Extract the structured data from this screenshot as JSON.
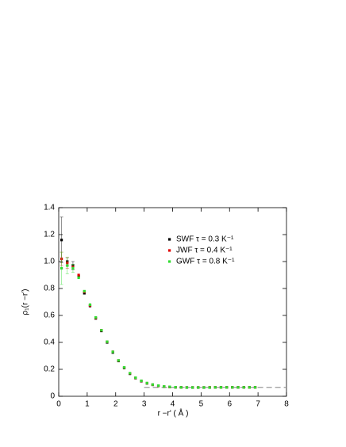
{
  "chart_data": {
    "type": "scatter",
    "x_label": "r −r'  ( Å )",
    "y_label": "ρ₁(r −r')",
    "xlim": [
      0,
      8
    ],
    "ylim": [
      0,
      1.4
    ],
    "xticks": [
      0,
      1,
      2,
      3,
      4,
      5,
      6,
      7,
      8
    ],
    "yticks": [
      0,
      0.2,
      0.4,
      0.6,
      0.8,
      {
        "value": 1,
        "label": "1.0"
      },
      1.2,
      1.4
    ],
    "x": [
      0.1,
      0.3,
      0.5,
      0.7,
      0.9,
      1.1,
      1.3,
      1.5,
      1.7,
      1.9,
      2.1,
      2.3,
      2.5,
      2.7,
      2.9,
      3.1,
      3.3,
      3.5,
      3.7,
      3.9,
      4.1,
      4.3,
      4.5,
      4.7,
      4.9,
      5.1,
      5.3,
      5.5,
      5.7,
      5.9,
      6.1,
      6.3,
      6.5,
      6.7,
      6.9
    ],
    "series": [
      {
        "name": "SWF   τ = 0.3 K⁻¹",
        "color": "#000000",
        "values": [
          1.16,
          1.0,
          0.97,
          0.89,
          0.765,
          0.67,
          0.578,
          0.485,
          0.4,
          0.325,
          0.262,
          0.21,
          0.167,
          0.135,
          0.112,
          0.096,
          0.085,
          0.077,
          0.072,
          0.069,
          0.067,
          0.066,
          0.065,
          0.065,
          0.065,
          0.065,
          0.065,
          0.066,
          0.066,
          0.066,
          0.066,
          0.066,
          0.066,
          0.066,
          0.066
        ],
        "errors": [
          0.17,
          0.03,
          0.03,
          null,
          null,
          null,
          null,
          null,
          null,
          null,
          null,
          null,
          null,
          null,
          null,
          null,
          null,
          null,
          null,
          null,
          null,
          null,
          null,
          null,
          null,
          null,
          null,
          null,
          null,
          null,
          null,
          null,
          null,
          null,
          null
        ]
      },
      {
        "name": "JWF   τ = 0.4 K⁻¹",
        "color": "#e00000",
        "values": [
          1.02,
          0.99,
          0.96,
          0.9,
          0.775,
          0.675,
          0.582,
          0.49,
          0.405,
          0.33,
          0.265,
          0.213,
          0.17,
          0.137,
          0.114,
          0.097,
          0.086,
          0.078,
          0.073,
          0.069,
          0.067,
          0.066,
          0.065,
          0.065,
          0.065,
          0.065,
          0.066,
          0.066,
          0.066,
          0.066,
          0.066,
          0.066,
          0.066,
          0.066,
          0.066
        ],
        "errors": [
          0.05,
          0.04,
          null,
          null,
          null,
          null,
          null,
          null,
          null,
          null,
          null,
          null,
          null,
          null,
          null,
          null,
          null,
          null,
          null,
          null,
          null,
          null,
          null,
          null,
          null,
          null,
          null,
          null,
          null,
          null,
          null,
          null,
          null,
          null,
          null
        ]
      },
      {
        "name": "GWF   τ = 0.8 K⁻¹",
        "color": "#33dd33",
        "values": [
          0.95,
          0.97,
          0.95,
          0.88,
          0.78,
          0.68,
          0.585,
          0.49,
          0.405,
          0.33,
          0.266,
          0.214,
          0.171,
          0.138,
          0.115,
          0.098,
          0.087,
          0.079,
          0.073,
          0.07,
          0.067,
          0.066,
          0.065,
          0.065,
          0.065,
          0.065,
          0.065,
          0.066,
          0.066,
          0.066,
          0.066,
          0.066,
          0.066,
          0.066,
          0.066
        ],
        "errors": [
          0.12,
          0.06,
          0.03,
          null,
          null,
          null,
          null,
          null,
          null,
          null,
          null,
          null,
          null,
          null,
          null,
          null,
          null,
          null,
          null,
          null,
          null,
          null,
          null,
          null,
          null,
          null,
          null,
          null,
          null,
          null,
          null,
          null,
          null,
          null,
          null
        ]
      }
    ],
    "reference_line": {
      "y": 0.066,
      "x_range": [
        3,
        8
      ],
      "color": "#999999"
    }
  }
}
